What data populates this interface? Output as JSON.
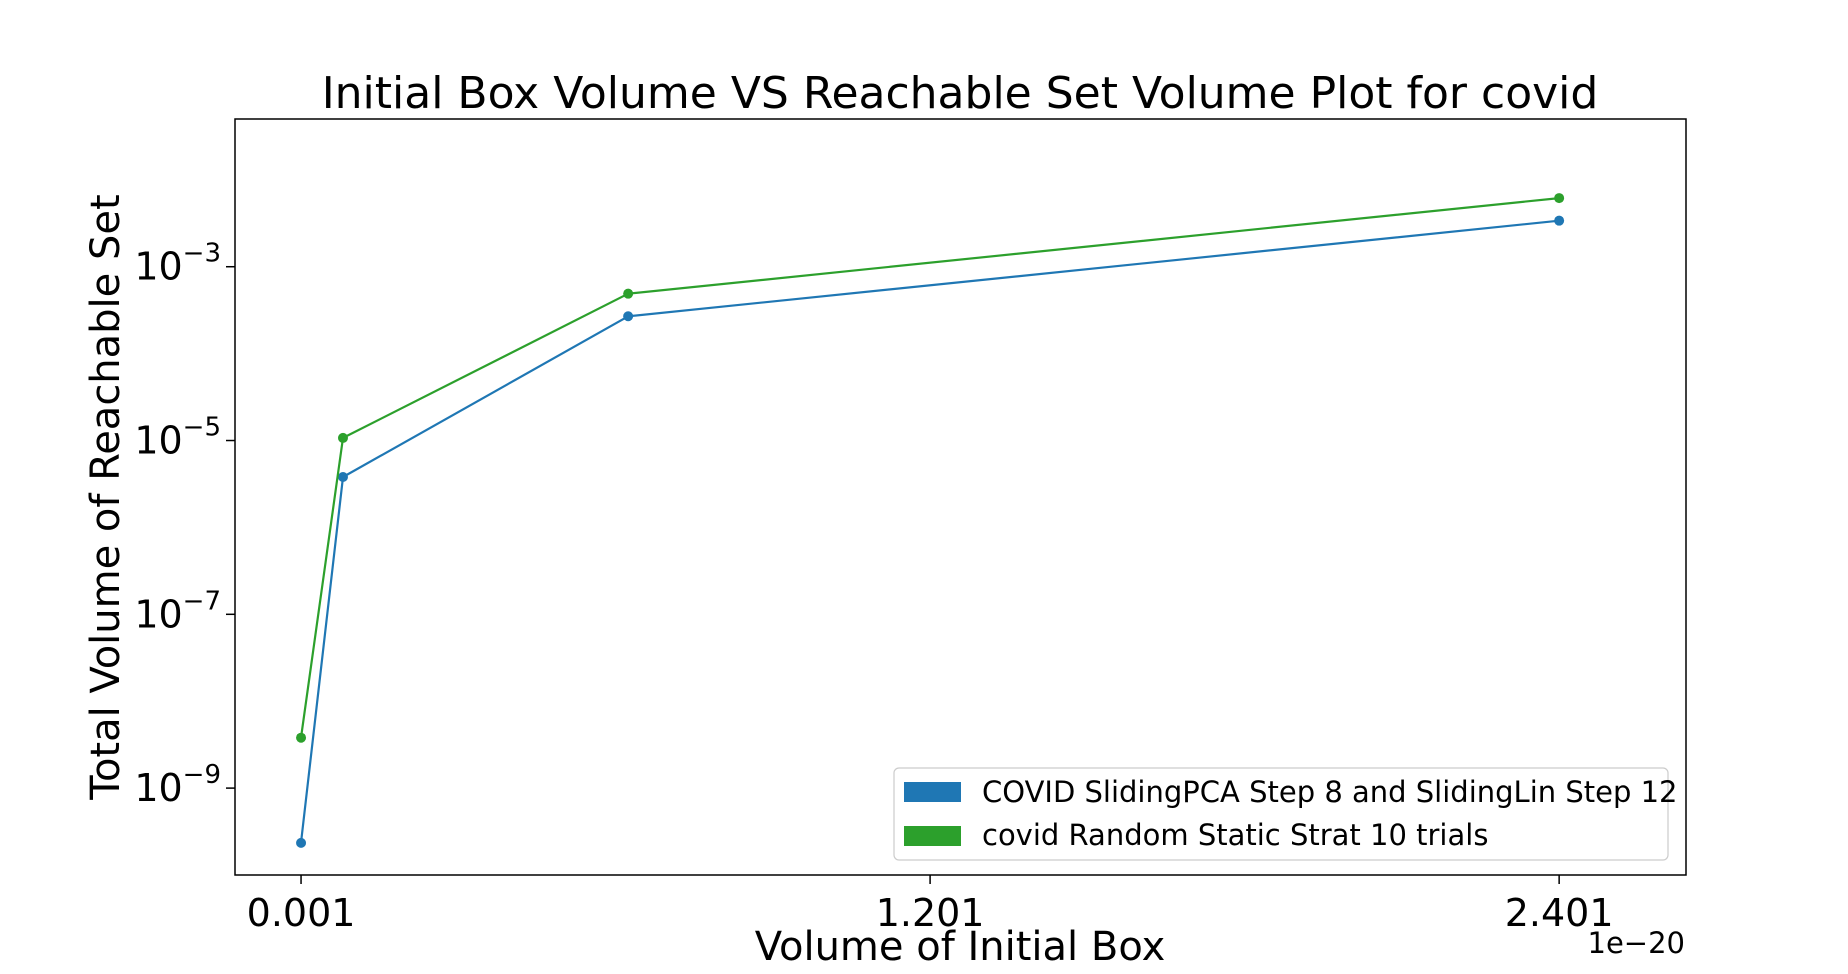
{
  "chart_data": {
    "type": "line",
    "title": "Initial Box Volume VS Reachable Set Volume Plot for covid",
    "xlabel": "Volume of Initial Box",
    "ylabel": "Total Volume of Reachable Set",
    "x_offset_label": "1e−20",
    "xscale": "linear",
    "yscale": "log",
    "xlim": [
      -0.125,
      2.643
    ],
    "ylim_log10": [
      -10.0,
      -1.3
    ],
    "xticks": [
      {
        "value": 0.001,
        "label": "0.001"
      },
      {
        "value": 1.201,
        "label": "1.201"
      },
      {
        "value": 2.401,
        "label": "2.401"
      }
    ],
    "yticks": [
      {
        "exp": -3,
        "base": "10",
        "sup": "−3"
      },
      {
        "exp": -5,
        "base": "10",
        "sup": "−5"
      },
      {
        "exp": -7,
        "base": "10",
        "sup": "−7"
      },
      {
        "exp": -9,
        "base": "10",
        "sup": "−9"
      }
    ],
    "grid": false,
    "legend_position": "lower-right",
    "series": [
      {
        "name": "COVID SlidingPCA Step 8 and SlidingLin Step 12",
        "color": "#1f77b4",
        "x": [
          0.001,
          0.081,
          0.625,
          2.401
        ],
        "log10_y": [
          -9.63,
          -5.42,
          -3.57,
          -2.47
        ]
      },
      {
        "name": "covid Random Static  Strat 10 trials",
        "color": "#2ca02c",
        "x": [
          0.001,
          0.081,
          0.625,
          2.401
        ],
        "log10_y": [
          -8.42,
          -4.97,
          -3.31,
          -2.21
        ]
      }
    ]
  }
}
